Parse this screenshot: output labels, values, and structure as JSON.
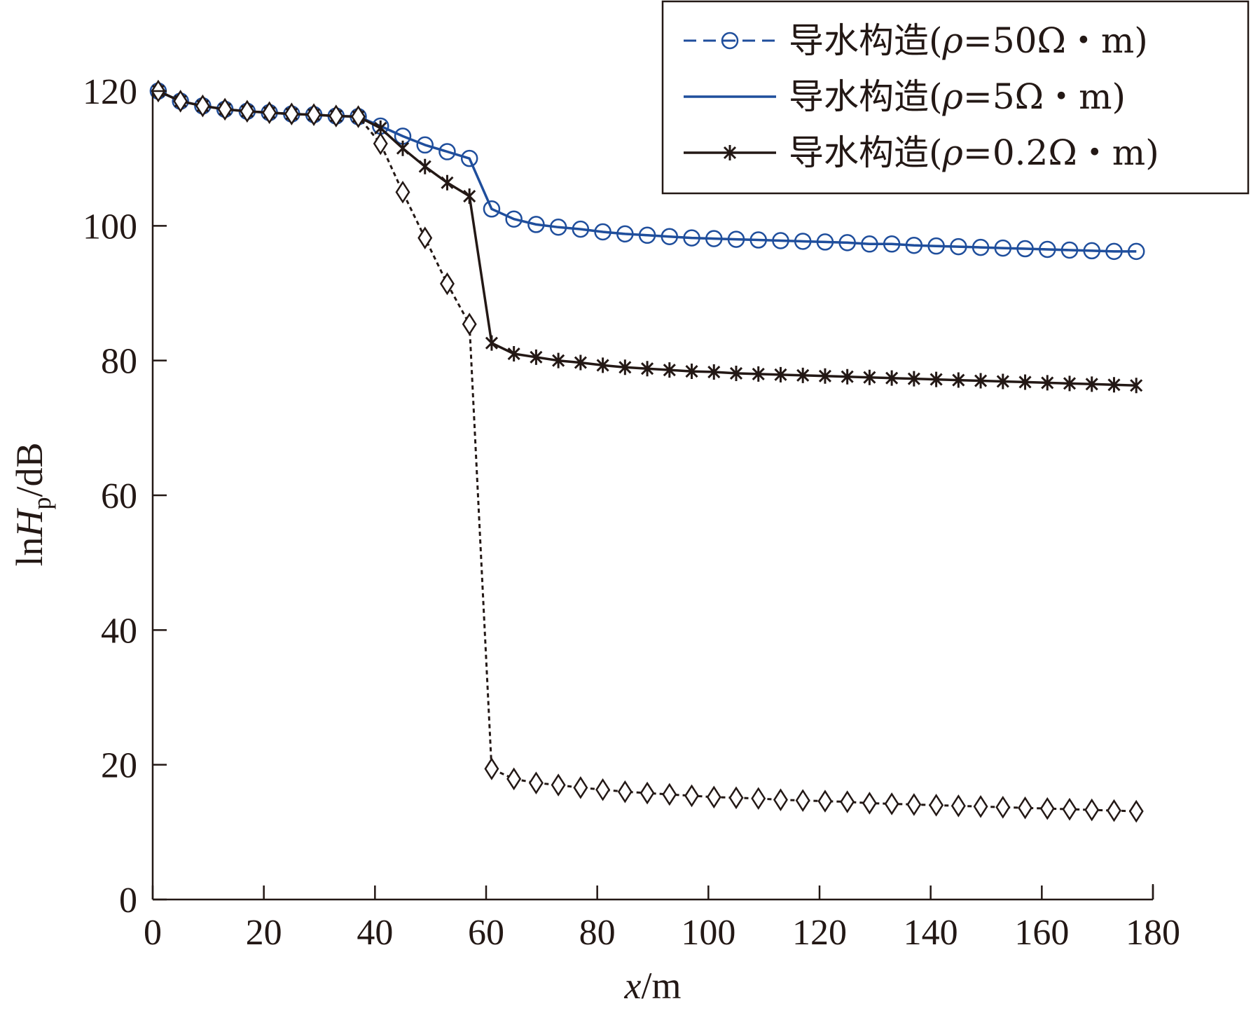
{
  "chart_data": {
    "type": "line",
    "xlabel_var": "x",
    "xlabel_unit": "/m",
    "ylabel_prefix": "ln",
    "ylabel_var": "H",
    "ylabel_sub": "p",
    "ylabel_unit": "/dB",
    "xlim": [
      0,
      180
    ],
    "ylim": [
      0,
      120
    ],
    "xticks": [
      0,
      20,
      40,
      60,
      80,
      100,
      120,
      140,
      160,
      180
    ],
    "yticks": [
      0,
      20,
      40,
      60,
      80,
      100,
      120
    ],
    "grid": false,
    "legend_position": "top-right",
    "x": [
      1,
      5,
      9,
      13,
      17,
      21,
      25,
      29,
      33,
      37,
      41,
      45,
      49,
      53,
      57,
      61,
      65,
      69,
      73,
      77,
      81,
      85,
      89,
      93,
      97,
      101,
      105,
      109,
      113,
      117,
      121,
      125,
      129,
      133,
      137,
      141,
      145,
      149,
      153,
      157,
      161,
      165,
      169,
      173,
      177
    ],
    "series": [
      {
        "name": "导水构造(ρ=50Ω・m)",
        "legend_prefix": "导水构造(",
        "legend_var": "ρ",
        "legend_rest": "=50Ω・m)",
        "color": "#1f4e9c",
        "line_style": "dashed",
        "marker": "circle",
        "values": [
          120,
          118.5,
          117.8,
          117.3,
          117,
          116.8,
          116.6,
          116.5,
          116.3,
          116.2,
          114.8,
          113.3,
          112,
          111,
          110,
          102.5,
          101,
          100.2,
          99.8,
          99.5,
          99.1,
          98.8,
          98.6,
          98.4,
          98.2,
          98.1,
          98.0,
          97.9,
          97.8,
          97.7,
          97.6,
          97.5,
          97.3,
          97.3,
          97.1,
          97.0,
          96.9,
          96.8,
          96.7,
          96.6,
          96.5,
          96.4,
          96.3,
          96.2,
          96.2
        ]
      },
      {
        "name": "导水构造(ρ=5Ω・m)",
        "legend_prefix": "导水构造(",
        "legend_var": "ρ",
        "legend_rest": "=5Ω・m)",
        "color": "#1f4e9c",
        "line_style": "solid",
        "marker": "none",
        "values": [
          120,
          118.5,
          117.8,
          117.3,
          117,
          116.8,
          116.6,
          116.5,
          116.3,
          116.2,
          114.8,
          113.3,
          112,
          111,
          110,
          102.5,
          101,
          100.2,
          99.8,
          99.5,
          99.1,
          98.8,
          98.6,
          98.4,
          98.2,
          98.1,
          98.0,
          97.9,
          97.8,
          97.7,
          97.6,
          97.5,
          97.3,
          97.3,
          97.1,
          97.0,
          96.9,
          96.8,
          96.7,
          96.6,
          96.5,
          96.4,
          96.3,
          96.2,
          96.2
        ]
      },
      {
        "name": "导水构造(ρ=0.2Ω・m)",
        "legend_prefix": "导水构造(",
        "legend_var": "ρ",
        "legend_rest": "=0.2Ω・m)",
        "color": "#231815",
        "line_style": "solid",
        "marker": "asterisk",
        "values": [
          120,
          118.5,
          117.8,
          117.3,
          117,
          116.8,
          116.6,
          116.5,
          116.3,
          116.2,
          114.5,
          111.5,
          108.8,
          106.4,
          104.4,
          82.6,
          81.0,
          80.5,
          80.0,
          79.7,
          79.3,
          79.0,
          78.8,
          78.6,
          78.4,
          78.3,
          78.1,
          78.0,
          77.9,
          77.8,
          77.7,
          77.6,
          77.5,
          77.4,
          77.3,
          77.2,
          77.1,
          77.0,
          76.9,
          76.8,
          76.7,
          76.6,
          76.5,
          76.4,
          76.3
        ]
      },
      {
        "color": "#231815",
        "line_style": "dotted",
        "marker": "diamond",
        "values": [
          120,
          118.5,
          117.8,
          117.3,
          117,
          116.8,
          116.6,
          116.5,
          116.3,
          116.2,
          112.2,
          105.0,
          98.2,
          91.4,
          85.4,
          19.4,
          17.9,
          17.3,
          17.0,
          16.6,
          16.3,
          16.0,
          15.8,
          15.6,
          15.4,
          15.2,
          15.1,
          15.0,
          14.8,
          14.7,
          14.6,
          14.5,
          14.3,
          14.2,
          14.1,
          14.0,
          13.9,
          13.8,
          13.7,
          13.6,
          13.5,
          13.4,
          13.3,
          13.2,
          13.1
        ]
      }
    ]
  }
}
